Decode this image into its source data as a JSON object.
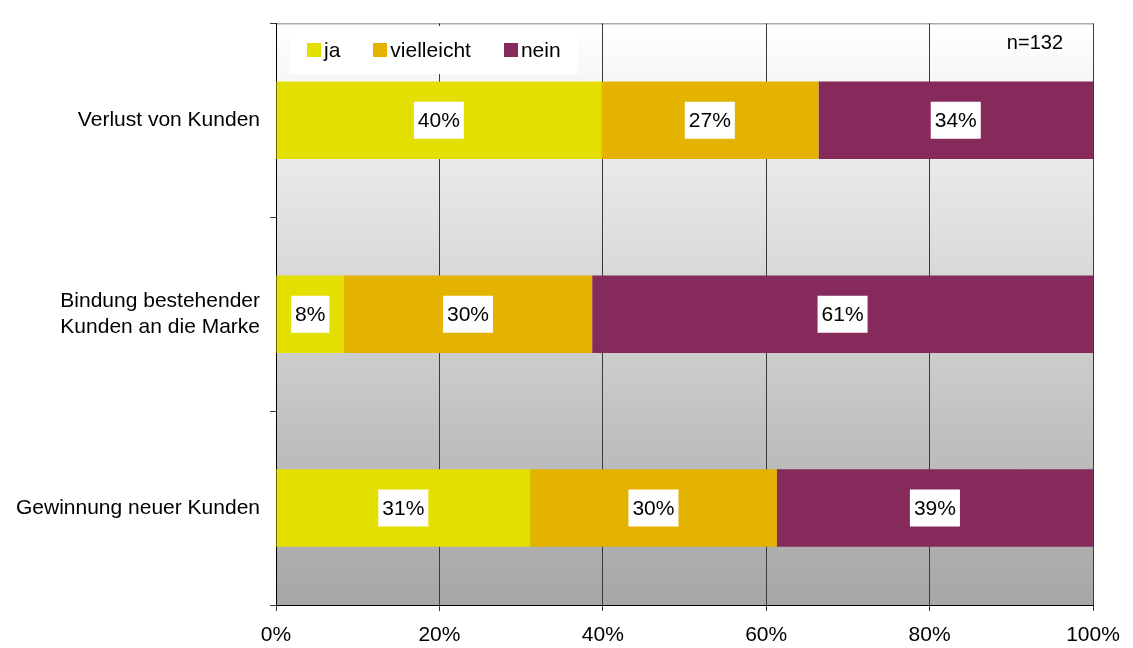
{
  "chart_data": {
    "type": "bar",
    "orientation": "horizontal",
    "stacked": true,
    "categories": [
      "Verlust von Kunden",
      "Bindung bestehender Kunden an die Marke",
      "Gewinnung neuer Kunden"
    ],
    "series": [
      {
        "name": "ja",
        "color": "#e3df00",
        "values": [
          39.8,
          8.3,
          31.1
        ],
        "value_labels": [
          "40%",
          "8%",
          "31%"
        ]
      },
      {
        "name": "vielleicht",
        "color": "#e3b300",
        "values": [
          26.6,
          30.4,
          30.2
        ],
        "value_labels": [
          "27%",
          "30%",
          "30%"
        ]
      },
      {
        "name": "nein",
        "color": "#862a5b",
        "values": [
          33.6,
          61.3,
          38.7
        ],
        "value_labels": [
          "34%",
          "61%",
          "39%"
        ]
      }
    ],
    "xlim": [
      0,
      100
    ],
    "xticks": [
      {
        "value": 0,
        "label": "0%"
      },
      {
        "value": 20,
        "label": "20%"
      },
      {
        "value": 40,
        "label": "40%"
      },
      {
        "value": 60,
        "label": "60%"
      },
      {
        "value": 80,
        "label": "80%"
      },
      {
        "value": 100,
        "label": "100%"
      }
    ],
    "grid": "x",
    "legend": "top left",
    "annotations": [
      "n=132"
    ]
  }
}
